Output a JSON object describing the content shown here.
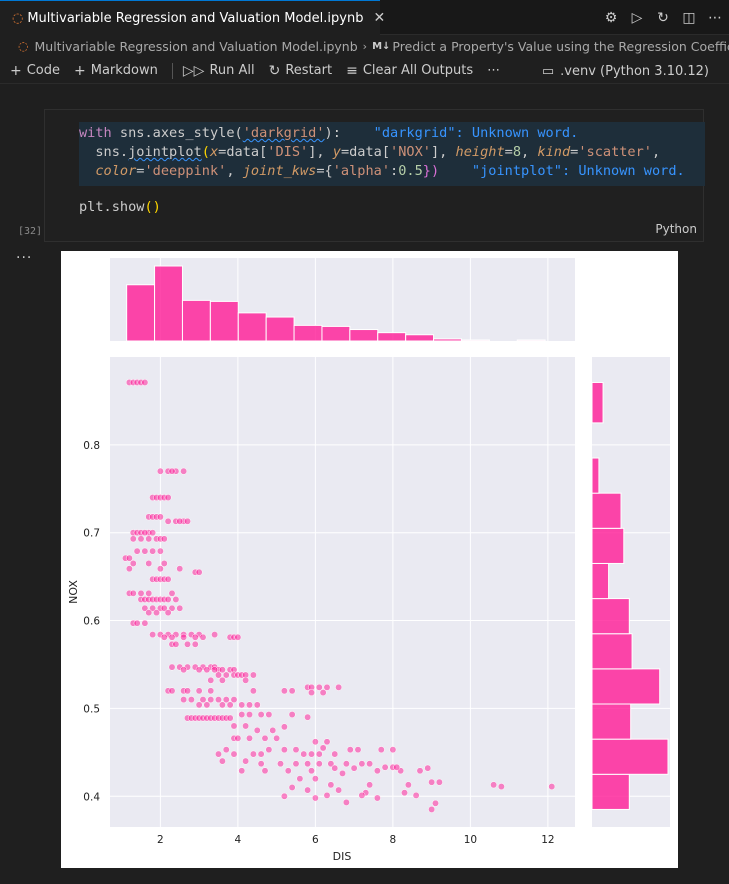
{
  "tab": {
    "title": "Multivariable Regression and Valuation Model.ipynb",
    "nb_icon": "notebook-icon",
    "close_glyph": "✕",
    "actions": [
      "⚙",
      "▷",
      "↻",
      "◫",
      "⋯"
    ]
  },
  "breadcrumb": {
    "file": "Multivariable Regression and Valuation Model.ipynb",
    "separator": "›",
    "md_badge": "M↓",
    "section": "Predict a Property's Value using the Regression Coeffic"
  },
  "toolbar": {
    "code_label": "Code",
    "markdown_label": "Markdown",
    "run_all_label": "Run All",
    "restart_label": "Restart",
    "clear_outputs_label": "Clear All Outputs",
    "more_glyph": "⋯",
    "kernel_label": ".venv (Python 3.10.12)"
  },
  "cell": {
    "execution_count": "[32]",
    "language": "Python",
    "output_dots": "···",
    "code": {
      "l1_with": "with",
      "l1_a": " sns.axes_style(",
      "l1_str": "'darkgrid'",
      "l1_b": "):",
      "l1_diag": "\"darkgrid\": Unknown word.",
      "l2_a": "  sns.",
      "l2_fn": "jointplot",
      "l2_b": "(",
      "l2_x": "x",
      "l2_c": "=data[",
      "l2_dis": "'DIS'",
      "l2_d": "], ",
      "l2_y": "y",
      "l2_e": "=data[",
      "l2_nox": "'NOX'",
      "l2_f": "], ",
      "l2_h": "height",
      "l2_g": "=",
      "l2_8": "8",
      "l2_i": ", ",
      "l2_k": "kind",
      "l2_j": "=",
      "l2_sc": "'scatter'",
      "l2_z": ",",
      "l3_pad": "  ",
      "l3_color": "color",
      "l3_a": "=",
      "l3_dp": "'deeppink'",
      "l3_b": ", ",
      "l3_jk": "joint_kws",
      "l3_c": "={",
      "l3_alpha": "'alpha'",
      "l3_d": ":",
      "l3_05": "0.5",
      "l3_e": "})",
      "l3_diag": "\"jointplot\": Unknown word.",
      "l5": "plt.show",
      "l5_p": "()"
    }
  },
  "chart_data": {
    "type": "scatter",
    "color": "#ff1493",
    "xlabel": "DIS",
    "ylabel": "NOX",
    "xlim": [
      0.7,
      12.7
    ],
    "ylim": [
      0.365,
      0.9
    ],
    "xticks": [
      2,
      4,
      6,
      8,
      10,
      12
    ],
    "yticks": [
      0.4,
      0.5,
      0.6,
      0.7,
      0.8
    ],
    "grid": true,
    "points": [
      [
        1.2,
        0.871
      ],
      [
        1.3,
        0.871
      ],
      [
        1.4,
        0.871
      ],
      [
        1.5,
        0.871
      ],
      [
        1.6,
        0.871
      ],
      [
        2.0,
        0.77
      ],
      [
        2.2,
        0.77
      ],
      [
        2.4,
        0.77
      ],
      [
        2.6,
        0.77
      ],
      [
        2.3,
        0.77
      ],
      [
        1.8,
        0.74
      ],
      [
        1.9,
        0.74
      ],
      [
        2.0,
        0.74
      ],
      [
        2.1,
        0.74
      ],
      [
        2.2,
        0.74
      ],
      [
        1.7,
        0.718
      ],
      [
        1.8,
        0.718
      ],
      [
        1.9,
        0.718
      ],
      [
        2.0,
        0.718
      ],
      [
        2.2,
        0.713
      ],
      [
        2.4,
        0.713
      ],
      [
        2.6,
        0.713
      ],
      [
        2.7,
        0.713
      ],
      [
        2.5,
        0.713
      ],
      [
        1.3,
        0.7
      ],
      [
        1.4,
        0.7
      ],
      [
        1.5,
        0.7
      ],
      [
        1.7,
        0.7
      ],
      [
        1.8,
        0.7
      ],
      [
        1.6,
        0.7
      ],
      [
        1.3,
        0.693
      ],
      [
        1.5,
        0.693
      ],
      [
        1.7,
        0.693
      ],
      [
        1.9,
        0.693
      ],
      [
        2.0,
        0.693
      ],
      [
        2.1,
        0.693
      ],
      [
        1.4,
        0.679
      ],
      [
        1.6,
        0.679
      ],
      [
        1.8,
        0.679
      ],
      [
        2.0,
        0.679
      ],
      [
        1.1,
        0.671
      ],
      [
        1.2,
        0.671
      ],
      [
        1.3,
        0.665
      ],
      [
        1.7,
        0.665
      ],
      [
        2.1,
        0.665
      ],
      [
        1.2,
        0.659
      ],
      [
        2.0,
        0.659
      ],
      [
        2.5,
        0.659
      ],
      [
        2.9,
        0.655
      ],
      [
        3.0,
        0.655
      ],
      [
        1.8,
        0.647
      ],
      [
        1.9,
        0.647
      ],
      [
        2.0,
        0.647
      ],
      [
        2.1,
        0.647
      ],
      [
        2.2,
        0.647
      ],
      [
        1.2,
        0.631
      ],
      [
        1.3,
        0.631
      ],
      [
        1.5,
        0.631
      ],
      [
        1.7,
        0.631
      ],
      [
        2.3,
        0.631
      ],
      [
        1.5,
        0.624
      ],
      [
        1.6,
        0.624
      ],
      [
        1.7,
        0.624
      ],
      [
        1.8,
        0.624
      ],
      [
        1.9,
        0.624
      ],
      [
        2.0,
        0.624
      ],
      [
        2.1,
        0.624
      ],
      [
        2.2,
        0.624
      ],
      [
        2.4,
        0.624
      ],
      [
        1.6,
        0.614
      ],
      [
        1.8,
        0.614
      ],
      [
        2.0,
        0.614
      ],
      [
        2.1,
        0.614
      ],
      [
        2.3,
        0.614
      ],
      [
        2.5,
        0.614
      ],
      [
        1.7,
        0.609
      ],
      [
        1.9,
        0.609
      ],
      [
        2.2,
        0.609
      ],
      [
        1.3,
        0.597
      ],
      [
        1.4,
        0.597
      ],
      [
        1.6,
        0.597
      ],
      [
        1.8,
        0.584
      ],
      [
        2.0,
        0.584
      ],
      [
        2.2,
        0.584
      ],
      [
        2.4,
        0.584
      ],
      [
        2.6,
        0.584
      ],
      [
        2.8,
        0.584
      ],
      [
        3.0,
        0.584
      ],
      [
        3.4,
        0.584
      ],
      [
        2.1,
        0.581
      ],
      [
        2.3,
        0.581
      ],
      [
        2.6,
        0.581
      ],
      [
        2.9,
        0.581
      ],
      [
        3.1,
        0.581
      ],
      [
        3.8,
        0.581
      ],
      [
        3.9,
        0.581
      ],
      [
        4.0,
        0.581
      ],
      [
        2.3,
        0.573
      ],
      [
        2.4,
        0.573
      ],
      [
        2.7,
        0.573
      ],
      [
        2.9,
        0.573
      ],
      [
        2.3,
        0.547
      ],
      [
        2.5,
        0.547
      ],
      [
        2.7,
        0.547
      ],
      [
        2.9,
        0.547
      ],
      [
        3.1,
        0.547
      ],
      [
        3.3,
        0.547
      ],
      [
        3.4,
        0.547
      ],
      [
        3.5,
        0.544
      ],
      [
        3.6,
        0.544
      ],
      [
        3.8,
        0.544
      ],
      [
        3.9,
        0.544
      ],
      [
        2.6,
        0.544
      ],
      [
        3.0,
        0.544
      ],
      [
        3.2,
        0.544
      ],
      [
        3.4,
        0.544
      ],
      [
        3.9,
        0.538
      ],
      [
        4.0,
        0.538
      ],
      [
        4.1,
        0.538
      ],
      [
        4.2,
        0.538
      ],
      [
        4.4,
        0.538
      ],
      [
        3.7,
        0.538
      ],
      [
        3.5,
        0.538
      ],
      [
        3.6,
        0.532
      ],
      [
        3.3,
        0.532
      ],
      [
        4.2,
        0.532
      ],
      [
        5.8,
        0.524
      ],
      [
        5.9,
        0.524
      ],
      [
        6.1,
        0.524
      ],
      [
        6.3,
        0.524
      ],
      [
        6.6,
        0.524
      ],
      [
        2.2,
        0.52
      ],
      [
        2.3,
        0.52
      ],
      [
        2.6,
        0.52
      ],
      [
        2.7,
        0.52
      ],
      [
        3.0,
        0.52
      ],
      [
        3.3,
        0.52
      ],
      [
        4.4,
        0.52
      ],
      [
        5.2,
        0.52
      ],
      [
        5.4,
        0.52
      ],
      [
        5.9,
        0.518
      ],
      [
        6.2,
        0.518
      ],
      [
        2.6,
        0.51
      ],
      [
        2.8,
        0.51
      ],
      [
        3.1,
        0.51
      ],
      [
        3.3,
        0.51
      ],
      [
        3.5,
        0.51
      ],
      [
        3.7,
        0.51
      ],
      [
        3.9,
        0.51
      ],
      [
        3.0,
        0.504
      ],
      [
        3.2,
        0.504
      ],
      [
        3.6,
        0.504
      ],
      [
        3.8,
        0.504
      ],
      [
        4.1,
        0.504
      ],
      [
        4.3,
        0.504
      ],
      [
        4.5,
        0.504
      ],
      [
        2.7,
        0.489
      ],
      [
        2.8,
        0.489
      ],
      [
        2.9,
        0.489
      ],
      [
        3.0,
        0.489
      ],
      [
        3.1,
        0.489
      ],
      [
        3.2,
        0.489
      ],
      [
        3.3,
        0.489
      ],
      [
        3.4,
        0.489
      ],
      [
        3.5,
        0.489
      ],
      [
        3.6,
        0.489
      ],
      [
        3.7,
        0.489
      ],
      [
        3.8,
        0.489
      ],
      [
        4.1,
        0.493
      ],
      [
        4.3,
        0.493
      ],
      [
        4.6,
        0.493
      ],
      [
        4.8,
        0.493
      ],
      [
        5.4,
        0.493
      ],
      [
        5.8,
        0.49
      ],
      [
        3.9,
        0.48
      ],
      [
        4.2,
        0.48
      ],
      [
        4.5,
        0.475
      ],
      [
        4.9,
        0.475
      ],
      [
        5.2,
        0.479
      ],
      [
        3.9,
        0.466
      ],
      [
        4.0,
        0.466
      ],
      [
        4.3,
        0.466
      ],
      [
        4.7,
        0.466
      ],
      [
        5.0,
        0.466
      ],
      [
        6.0,
        0.462
      ],
      [
        6.3,
        0.462
      ],
      [
        6.2,
        0.455
      ],
      [
        3.5,
        0.448
      ],
      [
        3.7,
        0.453
      ],
      [
        3.9,
        0.448
      ],
      [
        4.4,
        0.448
      ],
      [
        4.6,
        0.448
      ],
      [
        4.8,
        0.453
      ],
      [
        5.2,
        0.453
      ],
      [
        5.5,
        0.453
      ],
      [
        5.7,
        0.448
      ],
      [
        5.9,
        0.448
      ],
      [
        6.1,
        0.448
      ],
      [
        6.5,
        0.448
      ],
      [
        6.9,
        0.453
      ],
      [
        7.1,
        0.453
      ],
      [
        7.7,
        0.453
      ],
      [
        8.0,
        0.453
      ],
      [
        3.6,
        0.44
      ],
      [
        4.2,
        0.44
      ],
      [
        4.6,
        0.437
      ],
      [
        5.1,
        0.437
      ],
      [
        5.5,
        0.437
      ],
      [
        5.8,
        0.437
      ],
      [
        6.1,
        0.437
      ],
      [
        6.4,
        0.437
      ],
      [
        6.8,
        0.437
      ],
      [
        7.2,
        0.437
      ],
      [
        7.4,
        0.437
      ],
      [
        4.1,
        0.429
      ],
      [
        4.7,
        0.429
      ],
      [
        5.3,
        0.429
      ],
      [
        5.9,
        0.429
      ],
      [
        6.5,
        0.432
      ],
      [
        7.0,
        0.432
      ],
      [
        7.6,
        0.429
      ],
      [
        8.2,
        0.429
      ],
      [
        8.7,
        0.429
      ],
      [
        8.9,
        0.432
      ],
      [
        6.7,
        0.426
      ],
      [
        7.8,
        0.433
      ],
      [
        8.0,
        0.433
      ],
      [
        8.1,
        0.433
      ],
      [
        5.6,
        0.42
      ],
      [
        6.0,
        0.42
      ],
      [
        6.4,
        0.413
      ],
      [
        7.4,
        0.413
      ],
      [
        8.4,
        0.413
      ],
      [
        9.0,
        0.416
      ],
      [
        9.2,
        0.416
      ],
      [
        10.6,
        0.413
      ],
      [
        10.8,
        0.411
      ],
      [
        12.1,
        0.411
      ],
      [
        5.4,
        0.41
      ],
      [
        5.8,
        0.407
      ],
      [
        6.6,
        0.407
      ],
      [
        7.3,
        0.404
      ],
      [
        8.3,
        0.404
      ],
      [
        5.2,
        0.4
      ],
      [
        6.0,
        0.398
      ],
      [
        6.8,
        0.393
      ],
      [
        7.6,
        0.398
      ],
      [
        8.6,
        0.401
      ],
      [
        9.1,
        0.392
      ],
      [
        6.3,
        0.401
      ],
      [
        7.2,
        0.401
      ],
      [
        9.0,
        0.385
      ]
    ],
    "x_hist": {
      "bin_edges": [
        1.13,
        1.85,
        2.57,
        3.29,
        4.01,
        4.73,
        5.45,
        6.17,
        6.89,
        7.61,
        8.33,
        9.05,
        9.77,
        10.49,
        11.21,
        11.93
      ],
      "counts": [
        54,
        72,
        39,
        38,
        27,
        23,
        15,
        14,
        11,
        8,
        6,
        2,
        1,
        0,
        1
      ]
    },
    "y_hist": {
      "bin_edges": [
        0.385,
        0.425,
        0.465,
        0.505,
        0.545,
        0.585,
        0.625,
        0.665,
        0.705,
        0.745,
        0.785,
        0.825,
        0.871
      ],
      "counts": [
        27,
        55,
        28,
        49,
        29,
        27,
        12,
        23,
        21,
        5,
        0,
        8
      ]
    }
  }
}
